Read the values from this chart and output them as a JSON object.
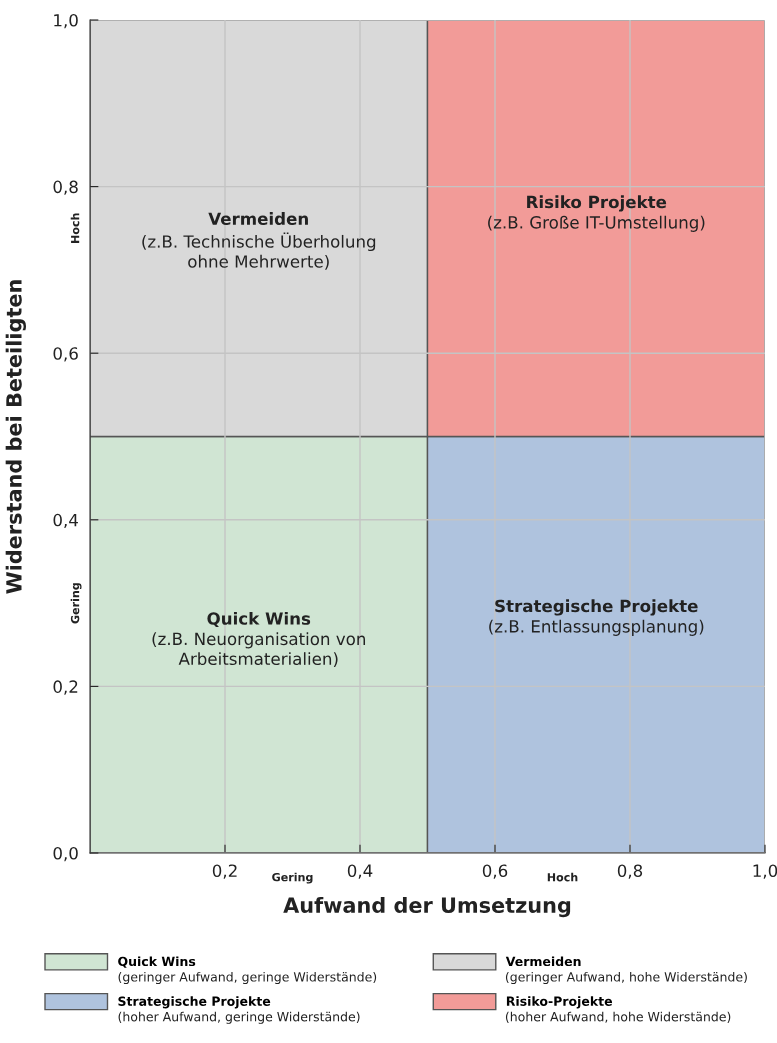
{
  "chart_data": {
    "type": "bar",
    "stacked": true,
    "xlabel": "Aufwand der Umsetzung",
    "ylabel": "Widerstand bei Beteiligten",
    "x": [
      0.25,
      0.75
    ],
    "xlim": [
      0,
      1
    ],
    "ylim": [
      0,
      1
    ],
    "xticks": [
      {
        "value": 0.2,
        "label": "0,2"
      },
      {
        "value": 0.4,
        "label": "0,4"
      },
      {
        "value": 0.6,
        "label": "0,6"
      },
      {
        "value": 0.8,
        "label": "0,8"
      },
      {
        "value": 1.0,
        "label": "1,0"
      }
    ],
    "yticks": [
      {
        "value": 0.0,
        "label": "0,0"
      },
      {
        "value": 0.2,
        "label": "0,2"
      },
      {
        "value": 0.4,
        "label": "0,4"
      },
      {
        "value": 0.6,
        "label": "0,6"
      },
      {
        "value": 0.8,
        "label": "0,8"
      },
      {
        "value": 1.0,
        "label": "1,0"
      }
    ],
    "grid": true,
    "legend": "bottom",
    "series": [
      {
        "name": "Quick Wins",
        "color": "#d0e5d3",
        "values": [
          0.5,
          null
        ]
      },
      {
        "name": "Strategische Projekte",
        "color": "#afc3de",
        "values": [
          null,
          0.5
        ]
      },
      {
        "name": "Vermeiden",
        "color": "#d9d9d9",
        "values": [
          0.5,
          null
        ]
      },
      {
        "name": "Risiko-Projekte",
        "color": "#f29b98",
        "values": [
          null,
          0.5
        ]
      }
    ],
    "annotations": [
      "Vermeiden\n(z.B. Technische Überholung\nohne Mehrwerte)",
      "Risiko Projekte\n(z.B. Große IT-Umstellung)",
      "Quick Wins\n(z.B. Neuorganisation von\nArbeitsmaterialien)",
      "Strategische Projekte\n(z.B. Entlassungsplanung)",
      "Gering",
      "Hoch",
      "Hoch",
      "Gering",
      "(geringer Aufwand, geringe Widerstände)",
      "(hoher Aufwand, geringe Widerstände)",
      "(geringer Aufwand, hohe Widerstände)",
      "(hoher Aufwand, hohe Widerstände)"
    ]
  }
}
